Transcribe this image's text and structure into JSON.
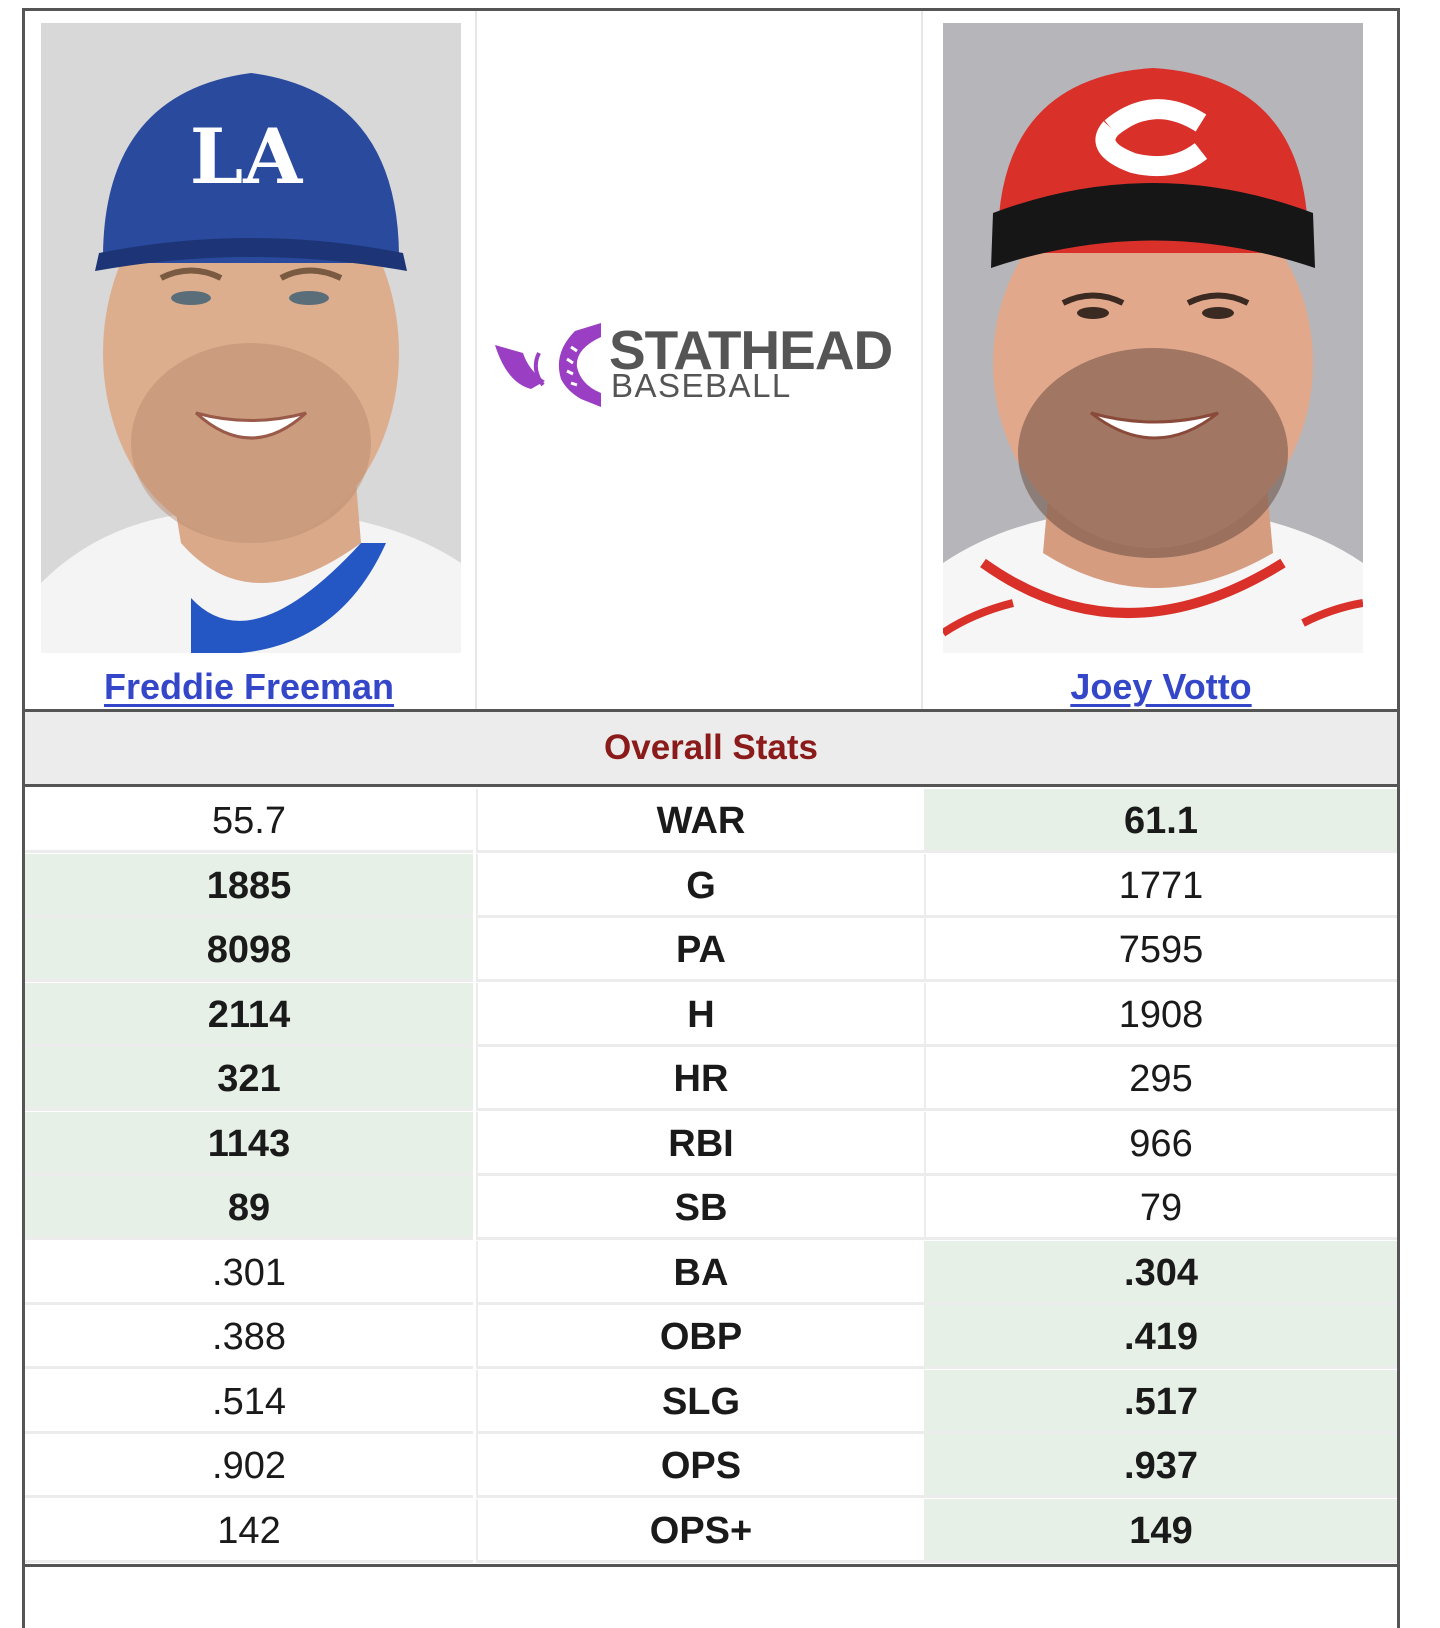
{
  "players": {
    "left": {
      "name": "Freddie Freeman",
      "cap_color": "#2a4a9e",
      "cap_logo": "LA"
    },
    "right": {
      "name": "Joey Votto",
      "cap_color": "#d9302a",
      "cap_logo": "C"
    }
  },
  "logo": {
    "line1": "STATHEAD",
    "line2": "BASEBALL",
    "accent": "#9a3fc4"
  },
  "section_title": "Overall Stats",
  "stats": [
    {
      "label": "WAR",
      "left": "55.7",
      "right": "61.1",
      "winner": "right"
    },
    {
      "label": "G",
      "left": "1885",
      "right": "1771",
      "winner": "left"
    },
    {
      "label": "PA",
      "left": "8098",
      "right": "7595",
      "winner": "left"
    },
    {
      "label": "H",
      "left": "2114",
      "right": "1908",
      "winner": "left"
    },
    {
      "label": "HR",
      "left": "321",
      "right": "295",
      "winner": "left"
    },
    {
      "label": "RBI",
      "left": "1143",
      "right": "966",
      "winner": "left"
    },
    {
      "label": "SB",
      "left": "89",
      "right": "79",
      "winner": "left"
    },
    {
      "label": "BA",
      "left": ".301",
      "right": ".304",
      "winner": "right"
    },
    {
      "label": "OBP",
      "left": ".388",
      "right": ".419",
      "winner": "right"
    },
    {
      "label": "SLG",
      "left": ".514",
      "right": ".517",
      "winner": "right"
    },
    {
      "label": "OPS",
      "left": ".902",
      "right": ".937",
      "winner": "right"
    },
    {
      "label": "OPS+",
      "left": "142",
      "right": "149",
      "winner": "right"
    }
  ],
  "colors": {
    "link": "#3547c9",
    "section_title": "#8b1a1a",
    "winner_bg": "#e6f0e6"
  }
}
